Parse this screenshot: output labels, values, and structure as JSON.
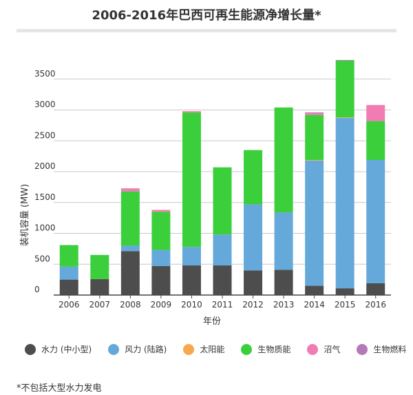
{
  "chart_data": {
    "type": "bar",
    "stacked": true,
    "title": "2006-2016年巴西可再生能源净增长量*",
    "xlabel": "年份",
    "ylabel": "装机容量 (MW)",
    "ylim": [
      0,
      4000
    ],
    "yticks": [
      0,
      500,
      1000,
      1500,
      2000,
      2500,
      3000,
      3500
    ],
    "grid": true,
    "legend_position": "bottom",
    "categories": [
      "2006",
      "2007",
      "2008",
      "2009",
      "2010",
      "2011",
      "2012",
      "2013",
      "2014",
      "2015",
      "2016"
    ],
    "series": [
      {
        "name": "水力 (中小型)",
        "color": "#4d4d4d",
        "values": [
          250,
          260,
          710,
          470,
          480,
          480,
          400,
          410,
          150,
          110,
          190
        ]
      },
      {
        "name": "风力 (陆路)",
        "color": "#65a8da",
        "values": [
          210,
          0,
          90,
          260,
          300,
          500,
          1070,
          930,
          2030,
          2760,
          2000
        ]
      },
      {
        "name": "太阳能",
        "color": "#f9a74d",
        "values": [
          0,
          0,
          0,
          0,
          0,
          0,
          0,
          0,
          10,
          10,
          0
        ]
      },
      {
        "name": "生物质能",
        "color": "#3ccf3c",
        "values": [
          350,
          390,
          880,
          620,
          2180,
          1090,
          880,
          1700,
          730,
          920,
          630
        ]
      },
      {
        "name": "沼气",
        "color": "#f07cb3",
        "values": [
          0,
          0,
          50,
          30,
          20,
          0,
          0,
          0,
          30,
          0,
          260
        ]
      },
      {
        "name": "生物燃料",
        "color": "#b27ab8",
        "values": [
          0,
          0,
          0,
          0,
          0,
          0,
          0,
          0,
          10,
          10,
          0
        ]
      }
    ],
    "footnote": "*不包括大型水力发电"
  }
}
